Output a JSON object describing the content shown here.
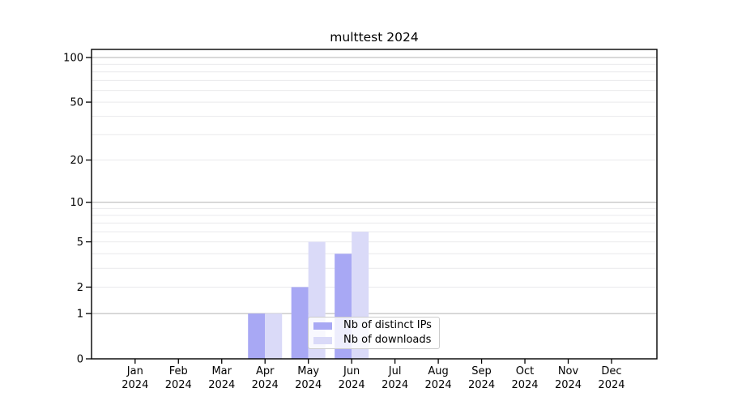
{
  "chart_data": {
    "type": "bar",
    "title": "multtest 2024",
    "categories": [
      "Jan",
      "Feb",
      "Mar",
      "Apr",
      "May",
      "Jun",
      "Jul",
      "Aug",
      "Sep",
      "Oct",
      "Nov",
      "Dec"
    ],
    "category_year": "2024",
    "series": [
      {
        "name": "Nb of distinct IPs",
        "color": "#a8a8f4",
        "values": [
          0,
          0,
          0,
          1,
          2,
          4,
          0,
          0,
          0,
          0,
          0,
          0
        ]
      },
      {
        "name": "Nb of downloads",
        "color": "#dadaf8",
        "values": [
          0,
          0,
          0,
          1,
          5,
          6,
          0,
          0,
          0,
          0,
          0,
          0
        ]
      }
    ],
    "y_axis": {
      "scale": "log1p",
      "tick_labels": [
        100,
        50,
        20,
        10,
        5,
        2,
        1,
        0
      ],
      "major_gridlines": [
        1,
        10,
        100
      ],
      "minor_gridlines": [
        2,
        3,
        4,
        5,
        6,
        7,
        8,
        9,
        20,
        30,
        40,
        50,
        60,
        70,
        80,
        90
      ],
      "ylim": [
        0,
        113
      ]
    },
    "x_axis": {
      "tick_count": 12
    },
    "legend": {
      "position": "lower-right-of-center",
      "entries": [
        "Nb of distinct IPs",
        "Nb of downloads"
      ]
    },
    "grid": true
  },
  "colors": {
    "axis": "#000000",
    "grid_major": "#b3b3b3",
    "grid_minor": "#e9e9ec",
    "legend_border": "#cccccc",
    "text": "#000000",
    "background": "#ffffff"
  }
}
